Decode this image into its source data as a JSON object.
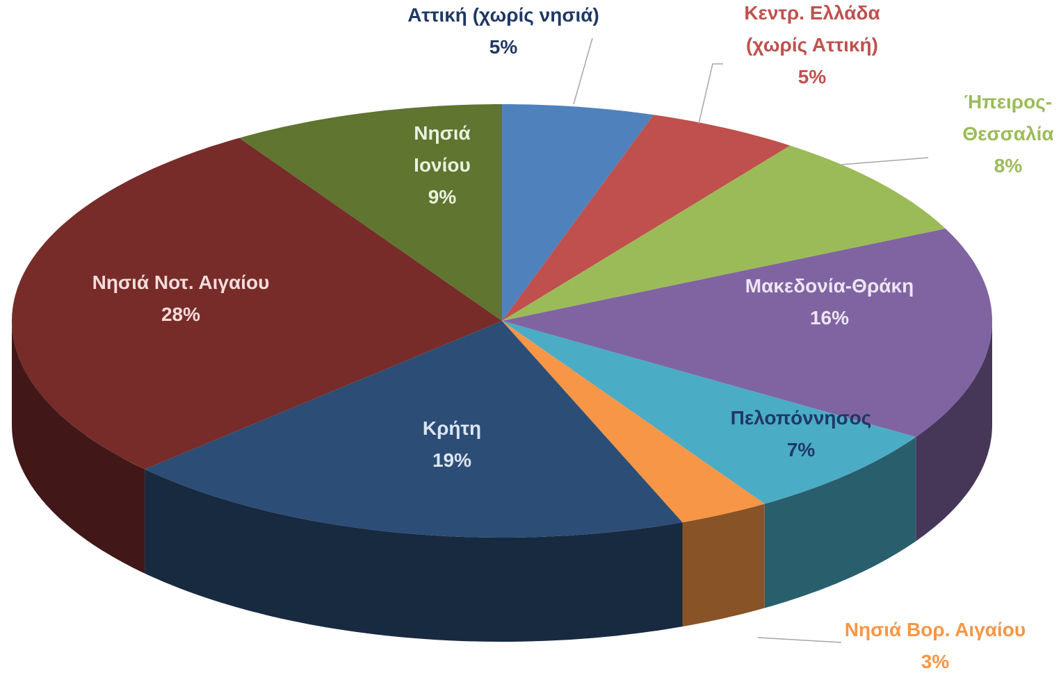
{
  "chart_data": {
    "type": "pie",
    "categories": [
      "Αττική (χωρίς νησιά)",
      "Κεντρ. Ελλάδα (χωρίς Αττική)",
      "Ήπειρος-Θεσσαλία",
      "Μακεδονία-Θράκη",
      "Πελοπόννησος",
      "Νησιά Βορ. Αιγαίου",
      "Κρήτη",
      "Νησιά Νοτ. Αιγαίου",
      "Νησιά Ιονίου"
    ],
    "values": [
      5,
      5,
      8,
      16,
      7,
      3,
      19,
      28,
      9
    ],
    "value_labels": [
      "5%",
      "5%",
      "8%",
      "16%",
      "7%",
      "3%",
      "19%",
      "28%",
      "9%"
    ],
    "colors": [
      "#4f81bd",
      "#c0504d",
      "#9bbb59",
      "#8064a2",
      "#4bacc6",
      "#f79646",
      "#2c4d75",
      "#772c2a",
      "#5f7530"
    ],
    "label_colors": [
      "#1f3864",
      "#c0504d",
      "#9bbb59",
      "#ece6f2",
      "#1f3864",
      "#f79646",
      "#dce6f2",
      "#f2dcdb",
      "#ebf1de"
    ]
  }
}
